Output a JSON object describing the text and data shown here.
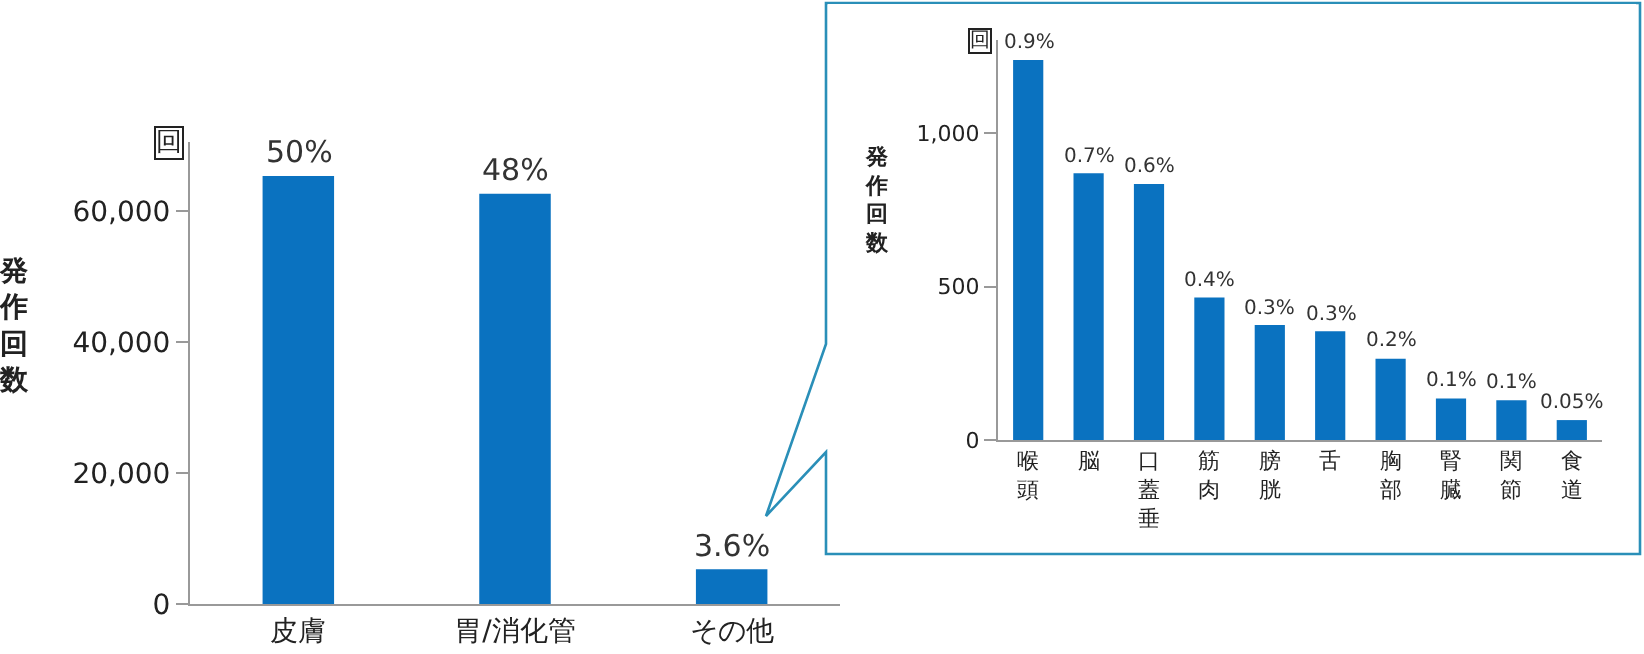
{
  "chart_data": [
    {
      "type": "bar",
      "ylabel": "発作回数",
      "categories": [
        "皮膚",
        "胃/消化管",
        "その他"
      ],
      "values": [
        65300,
        62600,
        5300
      ],
      "color": "#0a72c0",
      "annotations": [
        "回",
        {
          "text": "50%",
          "x": "皮膚",
          "y": 65300
        },
        {
          "text": "48%",
          "x": "胃/消化管",
          "y": 62600
        },
        {
          "text": "3.6%",
          "x": "その他",
          "y": 5300
        }
      ],
      "ylim": [
        0,
        70500
      ],
      "yticks": [
        {
          "value": 0,
          "label": "0"
        },
        {
          "value": 20000,
          "label": "20,000"
        },
        {
          "value": 40000,
          "label": "40,000"
        },
        {
          "value": 60000,
          "label": "60,000"
        }
      ],
      "grid": false,
      "legend": false
    },
    {
      "type": "bar",
      "ylabel": "発作回数",
      "categories": [
        "喉頭",
        "脳",
        "口蓋垂",
        "筋肉",
        "膀胱",
        "舌",
        "胸部",
        "腎臓",
        "関節",
        "食道"
      ],
      "values": [
        1240,
        870,
        835,
        465,
        375,
        355,
        265,
        135,
        130,
        65
      ],
      "color": "#0a72c0",
      "annotations": [
        "回",
        {
          "text": "0.9%",
          "x": "喉頭",
          "y": 1240
        },
        {
          "text": "0.7%",
          "x": "脳",
          "y": 870
        },
        {
          "text": "0.6%",
          "x": "口蓋垂",
          "y": 835
        },
        {
          "text": "0.4%",
          "x": "筋肉",
          "y": 465
        },
        {
          "text": "0.3%",
          "x": "膀胱",
          "y": 375
        },
        {
          "text": "0.3%",
          "x": "舌",
          "y": 355
        },
        {
          "text": "0.2%",
          "x": "胸部",
          "y": 265
        },
        {
          "text": "0.1%",
          "x": "腎臓",
          "y": 135
        },
        {
          "text": "0.1%",
          "x": "関節",
          "y": 130
        },
        {
          "text": "0.05%",
          "x": "食道",
          "y": 65
        }
      ],
      "ylim": [
        0,
        1305
      ],
      "yticks": [
        {
          "value": 0,
          "label": "0"
        },
        {
          "value": 500,
          "label": "500"
        },
        {
          "value": 1000,
          "label": "1,000"
        }
      ],
      "grid": false,
      "legend": false
    }
  ]
}
